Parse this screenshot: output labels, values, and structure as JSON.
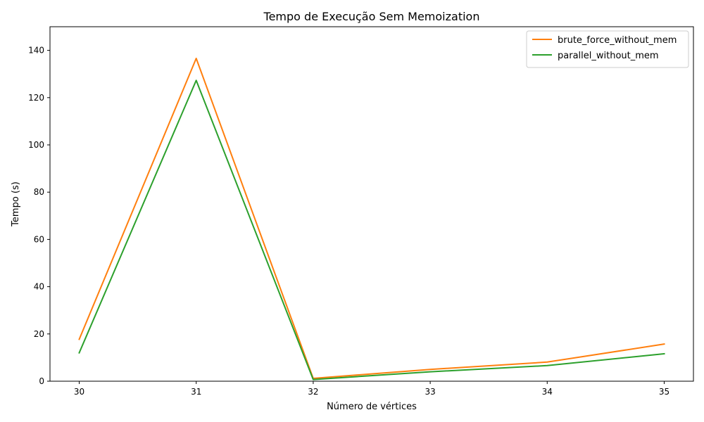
{
  "chart_data": {
    "type": "line",
    "title": "Tempo de Execução Sem Memoization",
    "xlabel": "Número de vértices",
    "ylabel": "Tempo (s)",
    "x": [
      30,
      31,
      32,
      33,
      34,
      35
    ],
    "x_ticks": [
      "30",
      "31",
      "32",
      "33",
      "34",
      "35"
    ],
    "y_ticks": [
      "0",
      "20",
      "40",
      "60",
      "80",
      "100",
      "120",
      "140"
    ],
    "xlim": [
      29.75,
      35.25
    ],
    "ylim": [
      0,
      150
    ],
    "grid": false,
    "legend_position": "top-right",
    "series": [
      {
        "name": "brute_force_without_mem",
        "color": "#ff7f0e",
        "values": [
          17.7,
          136.6,
          1.2,
          5.0,
          8.1,
          15.7
        ]
      },
      {
        "name": "parallel_without_mem",
        "color": "#2ca02c",
        "values": [
          12.0,
          127.3,
          0.7,
          4.0,
          6.6,
          11.6
        ]
      }
    ]
  }
}
